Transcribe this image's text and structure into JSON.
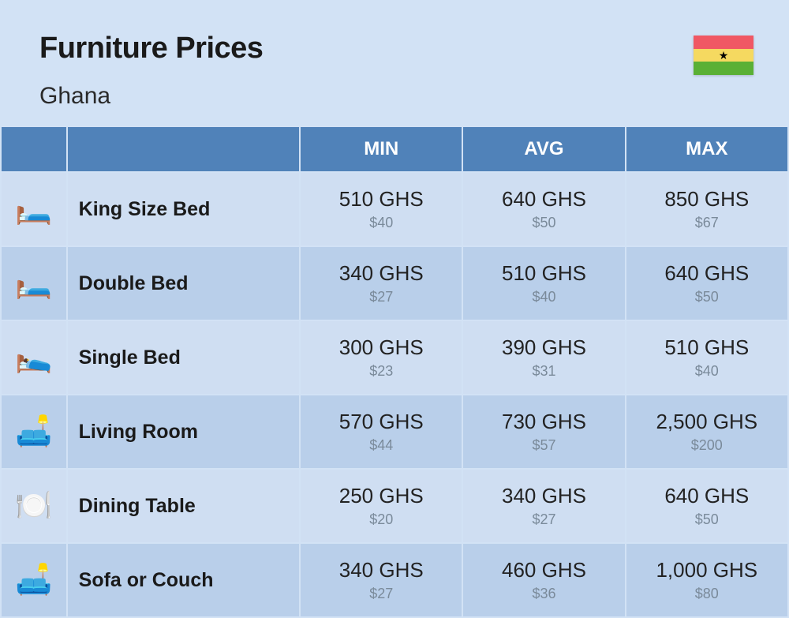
{
  "header": {
    "title": "Furniture Prices",
    "subtitle": "Ghana"
  },
  "flag": {
    "stripes": [
      "#f05864",
      "#f5d960",
      "#5ab035"
    ],
    "star_color": "#000000"
  },
  "table": {
    "columns": [
      "MIN",
      "AVG",
      "MAX"
    ],
    "column_bg": "#5082b9",
    "column_fg": "#ffffff",
    "row_bg_odd": "#cfdef2",
    "row_bg_even": "#b9cfea",
    "primary_color": "#222222",
    "secondary_color": "#7a8a9a",
    "rows": [
      {
        "icon": "🛏️",
        "name": "King Size Bed",
        "min": {
          "primary": "510 GHS",
          "secondary": "$40"
        },
        "avg": {
          "primary": "640 GHS",
          "secondary": "$50"
        },
        "max": {
          "primary": "850 GHS",
          "secondary": "$67"
        }
      },
      {
        "icon": "🛏️",
        "name": "Double Bed",
        "min": {
          "primary": "340 GHS",
          "secondary": "$27"
        },
        "avg": {
          "primary": "510 GHS",
          "secondary": "$40"
        },
        "max": {
          "primary": "640 GHS",
          "secondary": "$50"
        }
      },
      {
        "icon": "🛌",
        "name": "Single Bed",
        "min": {
          "primary": "300 GHS",
          "secondary": "$23"
        },
        "avg": {
          "primary": "390 GHS",
          "secondary": "$31"
        },
        "max": {
          "primary": "510 GHS",
          "secondary": "$40"
        }
      },
      {
        "icon": "🛋️",
        "name": "Living Room",
        "min": {
          "primary": "570 GHS",
          "secondary": "$44"
        },
        "avg": {
          "primary": "730 GHS",
          "secondary": "$57"
        },
        "max": {
          "primary": "2,500 GHS",
          "secondary": "$200"
        }
      },
      {
        "icon": "🍽️",
        "name": "Dining Table",
        "min": {
          "primary": "250 GHS",
          "secondary": "$20"
        },
        "avg": {
          "primary": "340 GHS",
          "secondary": "$27"
        },
        "max": {
          "primary": "640 GHS",
          "secondary": "$50"
        }
      },
      {
        "icon": "🛋️",
        "name": "Sofa or Couch",
        "min": {
          "primary": "340 GHS",
          "secondary": "$27"
        },
        "avg": {
          "primary": "460 GHS",
          "secondary": "$36"
        },
        "max": {
          "primary": "1,000 GHS",
          "secondary": "$80"
        }
      }
    ]
  }
}
